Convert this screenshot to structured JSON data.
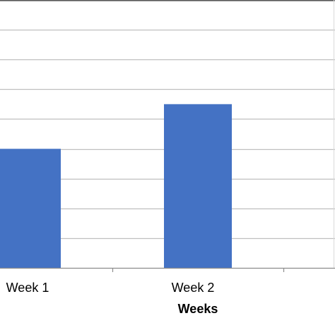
{
  "chart_data": {
    "type": "bar",
    "title": "",
    "xlabel": "Weeks",
    "ylabel": "",
    "categories": [
      "Week 1",
      "Week 2"
    ],
    "values": [
      4,
      5.5
    ],
    "ylim": [
      0,
      9
    ],
    "grid": true,
    "bar_color": "#4472C4",
    "grid_color": "#BFBFBF",
    "axis_color": "#8C8C8C"
  }
}
